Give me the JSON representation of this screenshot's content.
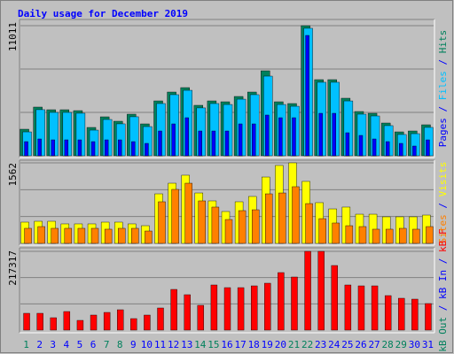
{
  "chart_data": [
    {
      "type": "bar",
      "title": "Daily usage for December 2019",
      "ylim": [
        0,
        11011
      ],
      "yticks": [
        11011
      ],
      "legend_separator": " / ",
      "series": [
        {
          "name": "Hits",
          "color": "#00805c",
          "values": [
            2247,
            4120,
            3895,
            3895,
            3820,
            2397,
            3296,
            2921,
            3520,
            2697,
            4644,
            5393,
            5768,
            4270,
            4644,
            4569,
            5019,
            5393,
            7191,
            4569,
            4419,
            11011,
            6442,
            6442,
            4869,
            3745,
            3595,
            2771,
            2022,
            2097,
            2622
          ]
        },
        {
          "name": "Files",
          "color": "#00c0ff",
          "values": [
            2020,
            3900,
            3670,
            3670,
            3600,
            2170,
            3070,
            2700,
            3300,
            2470,
            4420,
            5170,
            5540,
            4050,
            4420,
            4340,
            4790,
            5170,
            6740,
            4340,
            4190,
            10790,
            6220,
            6220,
            4640,
            3520,
            3370,
            2550,
            1800,
            1870,
            2400
          ]
        },
        {
          "name": "Pages",
          "color": "#0000ff",
          "values": [
            1198,
            1423,
            1348,
            1348,
            1348,
            1198,
            1348,
            1348,
            1198,
            1049,
            2097,
            2697,
            3221,
            2097,
            2097,
            2097,
            2697,
            2697,
            3446,
            3221,
            3221,
            10187,
            3595,
            3595,
            1948,
            1723,
            1423,
            1198,
            1049,
            824,
            1348
          ]
        }
      ]
    },
    {
      "type": "bar",
      "ylim": [
        0,
        1562
      ],
      "yticks": [
        1562
      ],
      "legend_separator": " / ",
      "series": [
        {
          "name": "Visits",
          "color": "#ffff00",
          "values": [
            412,
            429,
            429,
            378,
            378,
            378,
            412,
            412,
            378,
            343,
            961,
            1167,
            1322,
            978,
            824,
            618,
            807,
            910,
            1287,
            1511,
            1562,
            1202,
            790,
            669,
            704,
            566,
            566,
            515,
            515,
            515,
            549
          ]
        },
        {
          "name": "Sites",
          "color": "#ff8000",
          "values": [
            292,
            326,
            292,
            292,
            292,
            292,
            275,
            292,
            292,
            240,
            807,
            1047,
            1167,
            824,
            704,
            463,
            635,
            652,
            961,
            978,
            1099,
            772,
            480,
            395,
            343,
            326,
            275,
            275,
            292,
            275,
            326
          ]
        }
      ]
    },
    {
      "type": "bar",
      "ylim": [
        0,
        217317
      ],
      "yticks": [
        217317
      ],
      "legend_separator": " / ",
      "categories": [
        "1",
        "2",
        "3",
        "4",
        "5",
        "6",
        "7",
        "8",
        "9",
        "10",
        "11",
        "12",
        "13",
        "14",
        "15",
        "16",
        "17",
        "18",
        "19",
        "20",
        "21",
        "22",
        "23",
        "24",
        "25",
        "26",
        "27",
        "28",
        "29",
        "30",
        "31"
      ],
      "category_colors": [
        "#00805c",
        "#0000ff",
        "#0000ff",
        "#0000ff",
        "#0000ff",
        "#0000ff",
        "#00805c",
        "#00805c",
        "#0000ff",
        "#0000ff",
        "#0000ff",
        "#0000ff",
        "#0000ff",
        "#00805c",
        "#00805c",
        "#0000ff",
        "#0000ff",
        "#0000ff",
        "#0000ff",
        "#0000ff",
        "#00805c",
        "#00805c",
        "#0000ff",
        "#0000ff",
        "#0000ff",
        "#0000ff",
        "#0000ff",
        "#00805c",
        "#00805c",
        "#0000ff",
        "#0000ff"
      ],
      "legend": [
        {
          "name": "kB In",
          "color": "#0000ff"
        },
        {
          "name": "kB Out",
          "color": "#00805c"
        }
      ],
      "series": [
        {
          "name": "kB F",
          "color": "#ff0000",
          "values": [
            46394,
            46394,
            34185,
            51277,
            26859,
            41510,
            48835,
            56160,
            31743,
            41510,
            61043,
            112321,
            97670,
            68369,
            124529,
            117204,
            117204,
            122087,
            129413,
            158713,
            146504,
            217317,
            217317,
            178247,
            124529,
            122087,
            122087,
            95229,
            87904,
            85462,
            73253
          ]
        }
      ]
    }
  ]
}
